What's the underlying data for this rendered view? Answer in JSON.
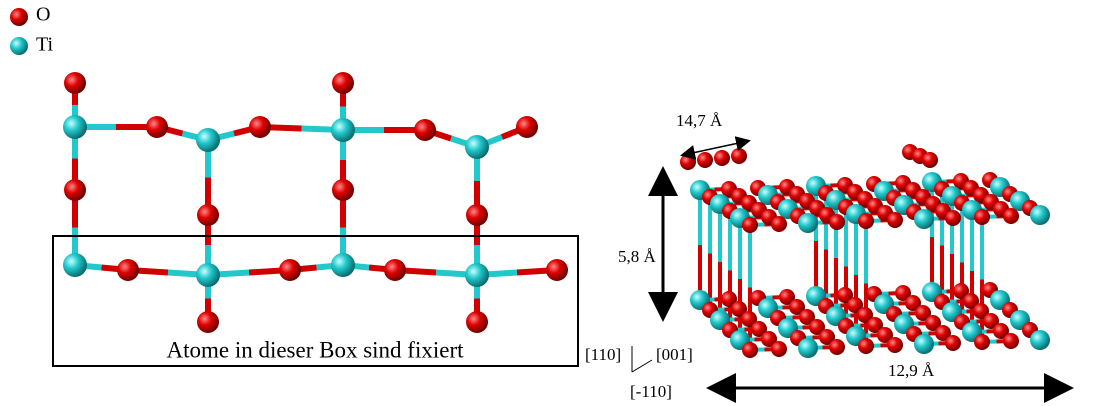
{
  "legend": {
    "items": [
      "O",
      "Ti"
    ]
  },
  "left_panel": {
    "box_label": "Atome in dieser Box sind fixiert"
  },
  "right_panel": {
    "depth_label": "14,7 Å",
    "height_label": "5,8 Å",
    "width_label": "12,9 Å",
    "axes": {
      "up": "[110]",
      "right": "[001]",
      "down": "[-110]"
    }
  }
}
